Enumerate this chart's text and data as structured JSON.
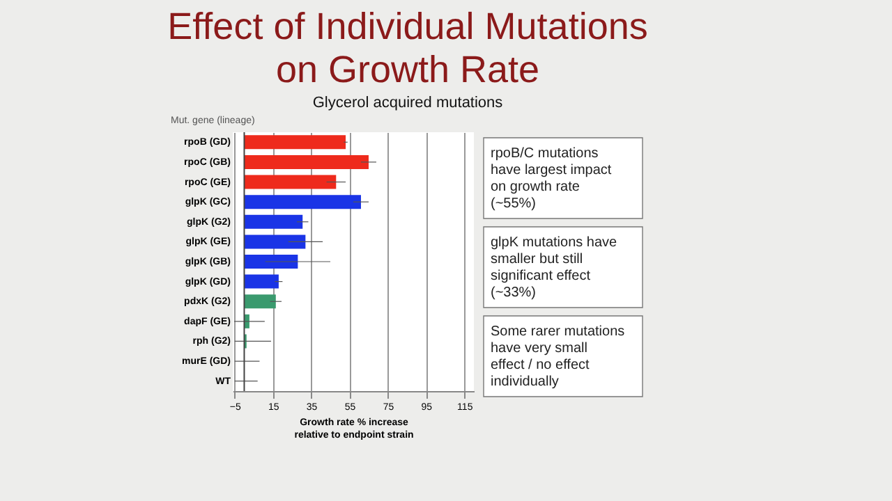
{
  "chart_data": {
    "type": "bar",
    "orientation": "horizontal",
    "title": "Effect of Individual Mutations on Growth Rate",
    "subtitle": "Glycerol acquired mutations",
    "xlabel": "Growth rate % increase relative to endpoint strain",
    "ylabel": "Mut. gene (lineage)",
    "categories": [
      "rpoB (GD)",
      "rpoC (GB)",
      "rpoC (GE)",
      "glpK (GC)",
      "glpK (G2)",
      "glpK (GE)",
      "glpK (GB)",
      "glpK (GD)",
      "pdxK (G2)",
      "dapF (GE)",
      "rph (G2)",
      "murE (GD)",
      "WT"
    ],
    "values": [
      53,
      65,
      48,
      61,
      30.5,
      32,
      28,
      18,
      16.5,
      2.7,
      1.2,
      0,
      0
    ],
    "errors": [
      1,
      4,
      5,
      4,
      3,
      9,
      17,
      2,
      3,
      8,
      [
        -5,
        14
      ],
      [
        -5,
        8
      ],
      [
        -5,
        7
      ]
    ],
    "colors": [
      "#ee2a1c",
      "#ee2a1c",
      "#ee2a1c",
      "#1a34e6",
      "#1a34e6",
      "#1a34e6",
      "#1a34e6",
      "#1a34e6",
      "#3a9a6e",
      "#3a9a6e",
      "#3a9a6e",
      "#3a9a6e",
      "#3a9a6e"
    ],
    "xlim": [
      -6,
      120
    ],
    "xticks": [
      -5,
      15,
      35,
      55,
      75,
      95,
      115
    ],
    "grid": "x",
    "annotations": [
      "rpoB/C mutations have largest impact on growth rate (~55%)",
      "glpK mutations have smaller but still significant effect (~33%)",
      "Some rarer mutations have very small effect / no effect individually"
    ]
  }
}
